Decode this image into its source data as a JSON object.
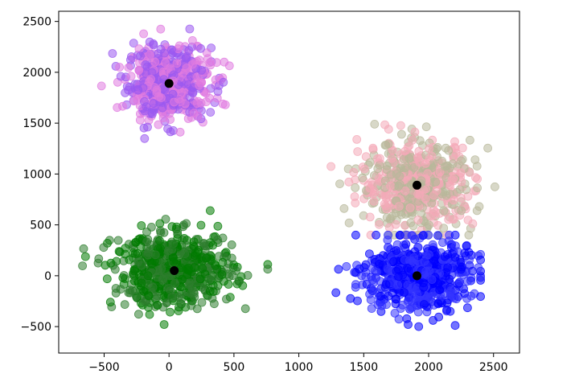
{
  "chart_data": {
    "type": "scatter",
    "title": "",
    "xlabel": "",
    "ylabel": "",
    "xlim": [
      -850,
      2700
    ],
    "ylim": [
      -760,
      2600
    ],
    "xticks": [
      -500,
      0,
      500,
      1000,
      1500,
      2000,
      2500
    ],
    "yticks": [
      -500,
      0,
      500,
      1000,
      1500,
      2000,
      2500
    ],
    "xtick_labels": [
      "−500",
      "0",
      "500",
      "1000",
      "1500",
      "2000",
      "2500"
    ],
    "ytick_labels": [
      "−500",
      "0",
      "500",
      "1000",
      "1500",
      "2000",
      "2500"
    ],
    "grid": false,
    "legend": false,
    "series": [
      {
        "cluster": "top-left",
        "center": [
          0,
          1890
        ],
        "spread": [
          160,
          180
        ],
        "count": 600,
        "colors": [
          "#9b59f0",
          "#e07ae0"
        ],
        "outer_range": {
          "x": [
            -560,
            600
          ],
          "y": [
            1260,
            2530
          ]
        }
      },
      {
        "cluster": "top-right",
        "center": [
          1910,
          890
        ],
        "spread": [
          220,
          210
        ],
        "count": 600,
        "colors": [
          "#b8b89a",
          "#f4a9b8"
        ],
        "outer_range": {
          "x": [
            1230,
            2580
          ],
          "y": [
            400,
            1550
          ]
        }
      },
      {
        "cluster": "bottom-left",
        "center": [
          40,
          50
        ],
        "spread": [
          230,
          180
        ],
        "count": 600,
        "colors": [
          "#2d7d2d",
          "#007a00"
        ],
        "outer_range": {
          "x": [
            -720,
            760
          ],
          "y": [
            -500,
            640
          ]
        }
      },
      {
        "cluster": "bottom-right",
        "center": [
          1910,
          0
        ],
        "spread": [
          200,
          175
        ],
        "count": 600,
        "colors": [
          "#3333ff",
          "#0000ff"
        ],
        "outer_range": {
          "x": [
            1200,
            2400
          ],
          "y": [
            -610,
            400
          ]
        }
      }
    ],
    "centroids": [
      {
        "x": 0,
        "y": 1890
      },
      {
        "x": 1910,
        "y": 890
      },
      {
        "x": 40,
        "y": 50
      },
      {
        "x": 1910,
        "y": 0
      }
    ]
  }
}
